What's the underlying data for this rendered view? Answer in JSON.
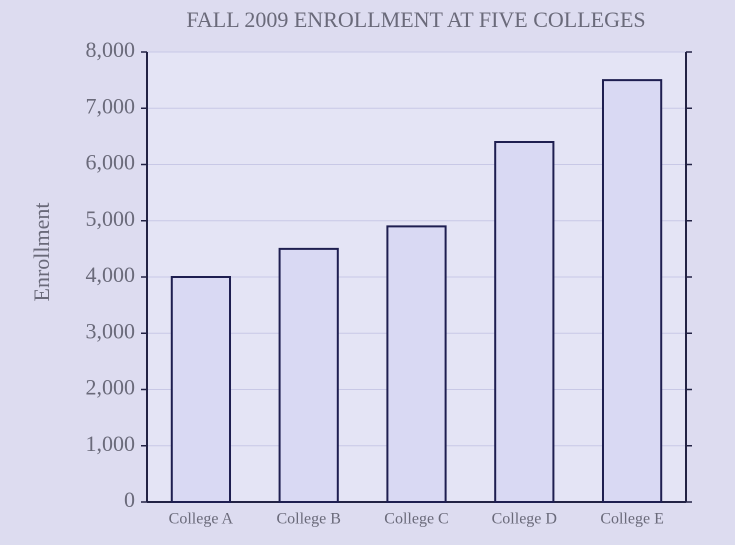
{
  "chart_data": {
    "type": "bar",
    "title": "FALL 2009 ENROLLMENT AT FIVE COLLEGES",
    "y_label": "Enrollment",
    "categories": [
      "College A",
      "College B",
      "College C",
      "College D",
      "College E"
    ],
    "values": [
      4000,
      4500,
      4900,
      6400,
      7500
    ],
    "color": "#d9d9f3",
    "ylim": [
      0,
      8000
    ],
    "yticks": [
      0,
      {
        "value": 1000,
        "label": "1,000"
      },
      {
        "value": 2000,
        "label": "2,000"
      },
      {
        "value": 3000,
        "label": "3,000"
      },
      {
        "value": 4000,
        "label": "4,000"
      },
      {
        "value": 5000,
        "label": "5,000"
      },
      {
        "value": 6000,
        "label": "6,000"
      },
      {
        "value": 7000,
        "label": "7,000"
      },
      {
        "value": 8000,
        "label": "8,000"
      }
    ],
    "grid": true
  }
}
